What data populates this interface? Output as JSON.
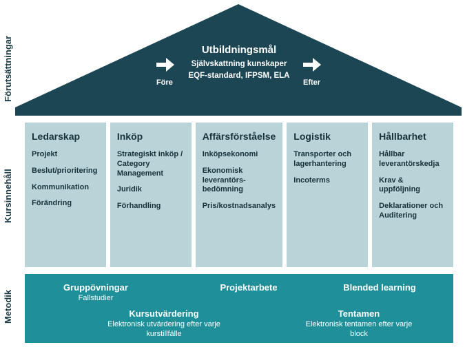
{
  "colors": {
    "roof": "#1c4654",
    "column_bg": "#b9d3d9",
    "bottom_bg": "#1f8f9a",
    "text_dark": "#18323a",
    "text_light": "#ffffff"
  },
  "labels": {
    "top": "Förutsättningar",
    "mid": "Kursinnehåll",
    "bot": "Metodik"
  },
  "roof": {
    "title": "Utbildningsmål",
    "line1": "Självskattning kunskaper",
    "line2": "EQF-standard, IFPSM, ELA",
    "left_label": "Före",
    "right_label": "Efter"
  },
  "columns": [
    {
      "title": "Ledarskap",
      "items": [
        "Projekt",
        "Beslut/prioritering",
        "Kommunikation",
        "Förändring"
      ]
    },
    {
      "title": "Inköp",
      "items": [
        "Strategiskt inköp / Category Management",
        "Juridik",
        "Förhandling"
      ]
    },
    {
      "title": "Affärsförståelse",
      "items": [
        "Inköpsekonomi",
        "Ekonomisk leverantörs-bedömning",
        "Pris/kostnadsanalys"
      ]
    },
    {
      "title": "Logistik",
      "items": [
        "Transporter och lagerhantering",
        "Incoterms"
      ]
    },
    {
      "title": "Hållbarhet",
      "items": [
        "Hållbar leverantörskedja",
        "Krav & uppföljning",
        "Deklarationer och Auditering"
      ]
    }
  ],
  "bottom": [
    {
      "title": "Gruppövningar",
      "sub": "Fallstudier"
    },
    {
      "title": "Projektarbete",
      "sub": ""
    },
    {
      "title": "Blended learning",
      "sub": ""
    },
    {
      "title": "Kursutvärdering",
      "sub": "Elektronisk utvärdering efter varje kurstillfälle"
    },
    {
      "title": "Tentamen",
      "sub": "Elektronisk tentamen efter varje block"
    }
  ],
  "fonts": {
    "vlabel": 13,
    "roof_title": 15,
    "roof_line": 11.5,
    "col_title": 14,
    "col_item": 11,
    "bottom_title": 13,
    "bottom_sub": 11
  }
}
